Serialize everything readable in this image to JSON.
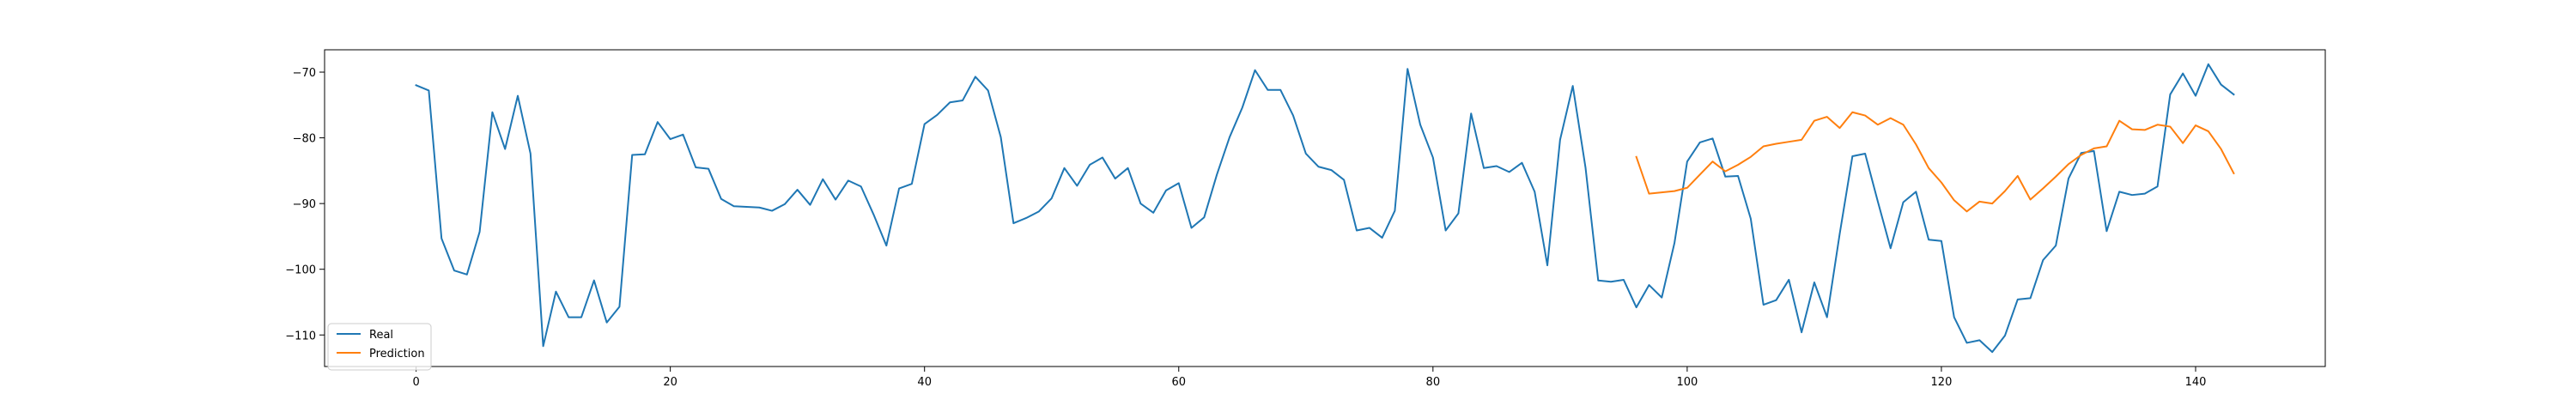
{
  "chart_data": {
    "type": "line",
    "title": "",
    "xlabel": "",
    "ylabel": "",
    "xlim": [
      -7.2,
      150.2
    ],
    "ylim": [
      -114.8,
      -66.6
    ],
    "xticks": [
      0,
      20,
      40,
      60,
      80,
      100,
      120,
      140
    ],
    "yticks": [
      -110,
      -100,
      -90,
      -80,
      -70
    ],
    "grid": false,
    "legend_position": "lower-left",
    "series": [
      {
        "name": "Real",
        "color": "#1f77b4",
        "x_start": 0,
        "values": [
          -72.0,
          -72.8,
          -95.3,
          -100.2,
          -100.8,
          -94.3,
          -76.1,
          -81.7,
          -73.6,
          -82.4,
          -111.7,
          -103.4,
          -107.3,
          -107.3,
          -101.7,
          -108.1,
          -105.7,
          -82.6,
          -82.5,
          -77.6,
          -80.2,
          -79.5,
          -84.5,
          -84.7,
          -89.3,
          -90.4,
          -90.5,
          -90.6,
          -91.1,
          -90.1,
          -87.9,
          -90.2,
          -86.3,
          -89.4,
          -86.5,
          -87.4,
          -91.7,
          -96.4,
          -87.7,
          -87.0,
          -77.9,
          -76.5,
          -74.6,
          -74.3,
          -70.7,
          -72.8,
          -79.9,
          -93.0,
          -92.2,
          -91.2,
          -89.2,
          -84.6,
          -87.3,
          -84.1,
          -83.0,
          -86.2,
          -84.6,
          -90.0,
          -91.4,
          -88.0,
          -86.9,
          -93.7,
          -92.1,
          -85.6,
          -79.9,
          -75.4,
          -69.7,
          -72.7,
          -72.7,
          -76.6,
          -82.4,
          -84.4,
          -84.9,
          -86.4,
          -94.1,
          -93.7,
          -95.2,
          -91.1,
          -69.5,
          -78.0,
          -83.0,
          -94.1,
          -91.5,
          -76.3,
          -84.6,
          -84.3,
          -85.2,
          -83.8,
          -88.2,
          -99.4,
          -80.3,
          -72.1,
          -84.5,
          -101.7,
          -101.9,
          -101.6,
          -105.8,
          -102.4,
          -104.3,
          -96.0,
          -83.6,
          -80.7,
          -80.1,
          -85.9,
          -85.8,
          -92.3,
          -105.4,
          -104.7,
          -101.6,
          -109.6,
          -102.0,
          -107.3,
          -94.6,
          -82.8,
          -82.4,
          -89.7,
          -96.8,
          -89.8,
          -88.2,
          -95.5,
          -95.7,
          -107.3,
          -111.2,
          -110.8,
          -112.6,
          -110.1,
          -104.6,
          -104.4,
          -98.6,
          -96.4,
          -86.2,
          -82.3,
          -82.0,
          -94.2,
          -88.2,
          -88.7,
          -88.5,
          -87.4,
          -73.4,
          -70.2,
          -73.6,
          -68.8,
          -71.9,
          -73.4
        ]
      },
      {
        "name": "Prediction",
        "color": "#ff7f0e",
        "x_start": 96,
        "values": [
          -82.9,
          -88.5,
          -88.3,
          -88.1,
          -87.6,
          -85.6,
          -83.6,
          -85.1,
          -84.1,
          -82.9,
          -81.3,
          -80.9,
          -80.6,
          -80.3,
          -77.4,
          -76.8,
          -78.5,
          -76.1,
          -76.6,
          -78.0,
          -77.0,
          -78.0,
          -81.0,
          -84.6,
          -86.8,
          -89.5,
          -91.2,
          -89.7,
          -90.0,
          -88.1,
          -85.8,
          -89.4,
          -87.7,
          -85.9,
          -84.0,
          -82.6,
          -81.6,
          -81.3,
          -77.4,
          -78.7,
          -78.8,
          -78.0,
          -78.3,
          -80.8,
          -78.1,
          -79.0,
          -81.7,
          -85.4
        ]
      }
    ]
  }
}
